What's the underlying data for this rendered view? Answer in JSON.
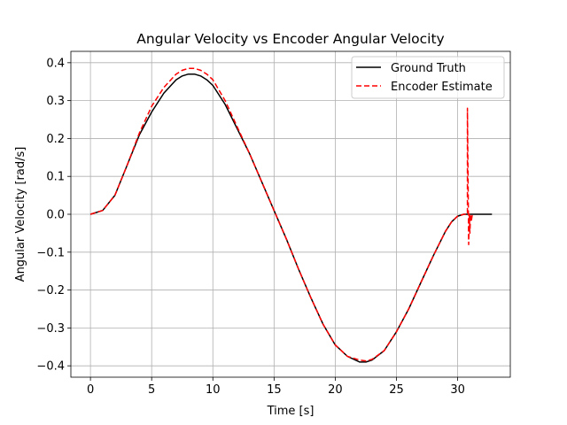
{
  "chart_data": {
    "type": "line",
    "title": "Angular Velocity vs Encoder Angular Velocity",
    "xlabel": "Time [s]",
    "ylabel": "Angular Velocity [rad/s]",
    "xlim": [
      -1.6,
      34.3
    ],
    "ylim": [
      -0.43,
      0.43
    ],
    "xticks": [
      0,
      5,
      10,
      15,
      20,
      25,
      30
    ],
    "xtick_labels": [
      "0",
      "5",
      "10",
      "15",
      "20",
      "25",
      "30"
    ],
    "yticks": [
      -0.4,
      -0.3,
      -0.2,
      -0.1,
      0.0,
      0.1,
      0.2,
      0.3,
      0.4
    ],
    "ytick_labels": [
      "−0.4",
      "−0.3",
      "−0.2",
      "−0.1",
      "0.0",
      "0.1",
      "0.2",
      "0.3",
      "0.4"
    ],
    "grid": true,
    "legend_position": "top-right",
    "series": [
      {
        "name": "Ground Truth",
        "color": "#000000",
        "style": "solid",
        "x": [
          0,
          1,
          2,
          3,
          4,
          5,
          6,
          7,
          7.5,
          8,
          8.5,
          9,
          9.5,
          10,
          11,
          12,
          13,
          14,
          15,
          16,
          17,
          18,
          19,
          20,
          21,
          22,
          22.5,
          23,
          24,
          25,
          26,
          27,
          28,
          29,
          29.5,
          30,
          30.5,
          31,
          31.5,
          32,
          32.8
        ],
        "y": [
          0,
          0.01,
          0.05,
          0.13,
          0.21,
          0.27,
          0.32,
          0.355,
          0.365,
          0.37,
          0.37,
          0.365,
          0.355,
          0.34,
          0.29,
          0.225,
          0.16,
          0.085,
          0.01,
          -0.065,
          -0.145,
          -0.22,
          -0.29,
          -0.345,
          -0.375,
          -0.39,
          -0.39,
          -0.385,
          -0.36,
          -0.31,
          -0.25,
          -0.18,
          -0.11,
          -0.045,
          -0.02,
          -0.005,
          0.0,
          0.0,
          0.0,
          0.0,
          0.0
        ]
      },
      {
        "name": "Encoder Estimate",
        "color": "#ff0000",
        "style": "dashed",
        "x": [
          0,
          1,
          2,
          3,
          4,
          5,
          6,
          7,
          7.5,
          8,
          8.5,
          9,
          9.5,
          10,
          11,
          12,
          13,
          14,
          15,
          16,
          17,
          18,
          19,
          20,
          21,
          22,
          22.5,
          23,
          24,
          25,
          26,
          27,
          28,
          29,
          29.5,
          30,
          30.5,
          30.8,
          30.8,
          30.9,
          30.95,
          31.0,
          31.05,
          31.1,
          31.2
        ],
        "y": [
          0,
          0.01,
          0.05,
          0.13,
          0.215,
          0.285,
          0.335,
          0.37,
          0.38,
          0.385,
          0.385,
          0.38,
          0.37,
          0.355,
          0.3,
          0.23,
          0.16,
          0.085,
          0.01,
          -0.065,
          -0.145,
          -0.22,
          -0.29,
          -0.345,
          -0.375,
          -0.385,
          -0.387,
          -0.383,
          -0.36,
          -0.31,
          -0.25,
          -0.18,
          -0.11,
          -0.045,
          -0.02,
          -0.005,
          0.0,
          0.0,
          0.28,
          -0.08,
          0.0,
          -0.05,
          0.0,
          -0.02,
          0.0
        ]
      }
    ]
  }
}
